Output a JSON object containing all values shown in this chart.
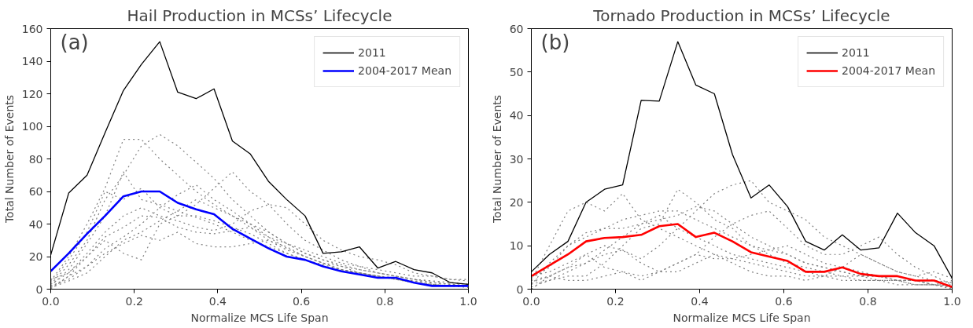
{
  "chart_data": [
    {
      "type": "line",
      "title": "Hail Production in MCSs’ Lifecycle",
      "xlabel": "Normalize MCS Life Span",
      "ylabel": "Total Number of Events",
      "annotations": [
        "(a)"
      ],
      "x": [
        0,
        0.043,
        0.087,
        0.13,
        0.174,
        0.217,
        0.261,
        0.304,
        0.348,
        0.391,
        0.435,
        0.478,
        0.522,
        0.565,
        0.609,
        0.652,
        0.696,
        0.739,
        0.783,
        0.826,
        0.87,
        0.913,
        0.957,
        1.0
      ],
      "xlim": [
        0,
        1
      ],
      "xticks": [
        {
          "value": 0,
          "label": "0.0"
        },
        {
          "value": 0.2,
          "label": "0.2"
        },
        {
          "value": 0.4,
          "label": "0.4"
        },
        {
          "value": 0.6,
          "label": "0.6"
        },
        {
          "value": 0.8,
          "label": "0.8"
        },
        {
          "value": 1,
          "label": "1.0"
        }
      ],
      "ylim": [
        0,
        160
      ],
      "yticks": [
        0,
        20,
        40,
        60,
        80,
        100,
        120,
        140,
        160
      ],
      "grid": false,
      "legend": "top right",
      "marker": "none",
      "series": [
        {
          "color": "#808080",
          "line_style": "dotted",
          "values": [
            5,
            20,
            40,
            62,
            92,
            92,
            80,
            70,
            60,
            52,
            45,
            38,
            30,
            24,
            20,
            16,
            12,
            10,
            8,
            6,
            5,
            4,
            3,
            2
          ]
        },
        {
          "color": "#808080",
          "line_style": "dotted",
          "values": [
            3,
            15,
            30,
            55,
            70,
            88,
            95,
            88,
            78,
            68,
            55,
            45,
            35,
            28,
            22,
            18,
            14,
            10,
            8,
            6,
            4,
            3,
            2,
            2
          ]
        },
        {
          "color": "#808080",
          "line_style": "dotted",
          "values": [
            2,
            12,
            28,
            45,
            72,
            55,
            52,
            48,
            44,
            40,
            35,
            30,
            26,
            22,
            18,
            14,
            12,
            10,
            8,
            6,
            4,
            3,
            2,
            1
          ]
        },
        {
          "color": "#808080",
          "line_style": "dotted",
          "values": [
            4,
            18,
            35,
            60,
            55,
            62,
            50,
            45,
            45,
            42,
            38,
            34,
            28,
            22,
            18,
            15,
            12,
            10,
            8,
            7,
            5,
            4,
            3,
            2
          ]
        },
        {
          "color": "#808080",
          "line_style": "dotted",
          "values": [
            1,
            8,
            14,
            25,
            32,
            40,
            50,
            58,
            64,
            55,
            48,
            40,
            32,
            25,
            20,
            16,
            12,
            10,
            8,
            6,
            4,
            3,
            2,
            2
          ]
        },
        {
          "color": "#808080",
          "line_style": "dotted",
          "values": [
            6,
            10,
            20,
            30,
            22,
            18,
            40,
            45,
            52,
            62,
            72,
            60,
            52,
            40,
            30,
            24,
            18,
            14,
            10,
            8,
            6,
            5,
            4,
            3
          ]
        },
        {
          "color": "#808080",
          "line_style": "dotted",
          "values": [
            2,
            6,
            14,
            22,
            28,
            33,
            30,
            35,
            28,
            26,
            26,
            28,
            30,
            26,
            20,
            16,
            14,
            12,
            10,
            8,
            6,
            4,
            3,
            2
          ]
        },
        {
          "color": "#808080",
          "line_style": "dotted",
          "values": [
            3,
            10,
            22,
            35,
            45,
            50,
            45,
            42,
            38,
            36,
            40,
            48,
            52,
            50,
            40,
            30,
            24,
            20,
            18,
            15,
            10,
            8,
            6,
            5
          ]
        },
        {
          "color": "#808080",
          "line_style": "dotted",
          "values": [
            1,
            5,
            10,
            20,
            30,
            35,
            42,
            48,
            55,
            50,
            45,
            40,
            35,
            28,
            22,
            18,
            15,
            12,
            10,
            8,
            6,
            5,
            4,
            3
          ]
        },
        {
          "color": "#808080",
          "line_style": "dotted",
          "values": [
            0,
            8,
            20,
            32,
            38,
            45,
            44,
            38,
            35,
            34,
            36,
            38,
            32,
            28,
            24,
            20,
            16,
            14,
            12,
            10,
            8,
            8,
            6,
            6
          ]
        },
        {
          "name": "2011",
          "color": "#000000",
          "line_style": "solid",
          "values": [
            21,
            59,
            70,
            96,
            122,
            138,
            152,
            121,
            117,
            123,
            91,
            83,
            66,
            55,
            45,
            22,
            23,
            26,
            13,
            17,
            12,
            10,
            4,
            3
          ]
        },
        {
          "name": "2004-2017 Mean",
          "color": "#0000ff",
          "line_style": "solid",
          "values": [
            11,
            22,
            34,
            45,
            57,
            60,
            60,
            53,
            49,
            46,
            37,
            31,
            25,
            20,
            18,
            14,
            11,
            9,
            7,
            7,
            4,
            2,
            2,
            2
          ]
        }
      ]
    },
    {
      "type": "line",
      "title": "Tornado Production in MCSs’ Lifecycle",
      "xlabel": "Normalize MCS Life Span",
      "ylabel": "Total Number of Events",
      "annotations": [
        "(b)"
      ],
      "x": [
        0,
        0.043,
        0.087,
        0.13,
        0.174,
        0.217,
        0.261,
        0.304,
        0.348,
        0.391,
        0.435,
        0.478,
        0.522,
        0.565,
        0.609,
        0.652,
        0.696,
        0.739,
        0.783,
        0.826,
        0.87,
        0.913,
        0.957,
        1.0
      ],
      "xlim": [
        0,
        1
      ],
      "xticks": [
        {
          "value": 0,
          "label": "0.0"
        },
        {
          "value": 0.2,
          "label": "0.2"
        },
        {
          "value": 0.4,
          "label": "0.4"
        },
        {
          "value": 0.6,
          "label": "0.6"
        },
        {
          "value": 0.8,
          "label": "0.8"
        },
        {
          "value": 1,
          "label": "1.0"
        }
      ],
      "ylim": [
        0,
        60
      ],
      "yticks": [
        0,
        10,
        20,
        30,
        40,
        50,
        60
      ],
      "grid": false,
      "legend": "top right",
      "marker": "none",
      "series": [
        {
          "color": "#808080",
          "line_style": "dotted",
          "values": [
            2,
            10,
            18,
            20,
            18,
            22,
            16,
            14,
            12,
            10,
            8,
            7,
            6,
            5,
            4,
            3,
            3,
            2,
            2,
            2,
            1,
            1,
            1,
            1
          ]
        },
        {
          "color": "#808080",
          "line_style": "dotted",
          "values": [
            1,
            6,
            10,
            13,
            14,
            16,
            17,
            18,
            18,
            16,
            14,
            12,
            10,
            9,
            8,
            6,
            5,
            4,
            3,
            3,
            2,
            2,
            1,
            0.5
          ]
        },
        {
          "color": "#808080",
          "line_style": "dotted",
          "values": [
            0,
            3,
            5,
            8,
            10,
            9,
            7,
            10,
            14,
            18,
            22,
            24,
            25,
            20,
            18,
            16,
            12,
            10,
            8,
            6,
            4,
            3,
            2,
            1.5
          ]
        },
        {
          "color": "#808080",
          "line_style": "dotted",
          "values": [
            3,
            4,
            6,
            8,
            5,
            4,
            2,
            4,
            6,
            8,
            12,
            15,
            17,
            18,
            14,
            10,
            8,
            8,
            10,
            12,
            8,
            5,
            3,
            1
          ]
        },
        {
          "color": "#808080",
          "line_style": "dotted",
          "values": [
            2.5,
            5,
            10,
            12,
            14,
            14,
            15,
            16,
            17,
            19,
            18,
            15,
            12,
            10,
            8,
            6,
            5,
            4,
            3,
            3,
            2,
            2,
            1,
            2
          ]
        },
        {
          "color": "#808080",
          "line_style": "dotted",
          "values": [
            0.5,
            2,
            3,
            3,
            6,
            10,
            14,
            15,
            23,
            20,
            16,
            14,
            10,
            8,
            6,
            5,
            4,
            3,
            3,
            2,
            2,
            2,
            1,
            0
          ]
        },
        {
          "color": "#808080",
          "line_style": "dotted",
          "values": [
            1.5,
            3,
            5,
            6,
            8,
            9,
            6,
            4,
            4,
            6,
            8,
            6,
            4,
            3,
            3,
            2,
            3,
            5,
            8,
            6,
            4,
            3,
            4,
            2.5
          ]
        },
        {
          "color": "#808080",
          "line_style": "dotted",
          "values": [
            1.2,
            2,
            4,
            6,
            9,
            12,
            15,
            17,
            14,
            12,
            10,
            8,
            7,
            6,
            5,
            4,
            3,
            3,
            2,
            2,
            2,
            1,
            1,
            0.8
          ]
        },
        {
          "color": "#808080",
          "line_style": "dotted",
          "values": [
            2,
            3,
            2,
            2,
            3,
            4,
            3,
            4,
            6,
            8,
            7,
            7,
            8,
            9,
            10,
            8,
            6,
            5,
            4,
            3,
            2,
            1,
            1,
            0.3
          ]
        },
        {
          "name": "2011",
          "color": "#000000",
          "line_style": "solid",
          "values": [
            4,
            8,
            11,
            20,
            23,
            24,
            43.5,
            43.3,
            57,
            47,
            45,
            31,
            21,
            24,
            19,
            11,
            9,
            12.5,
            9,
            9.5,
            17.5,
            13,
            10,
            2.5
          ]
        },
        {
          "name": "2004-2017 Mean",
          "color": "#ff0000",
          "line_style": "solid",
          "values": [
            3,
            5.5,
            8,
            11,
            11.8,
            12,
            12.5,
            14.5,
            15,
            12,
            13,
            11,
            8.5,
            7.5,
            6.5,
            4,
            4,
            5,
            3.5,
            3,
            3,
            2,
            2,
            0.5
          ]
        }
      ]
    }
  ]
}
